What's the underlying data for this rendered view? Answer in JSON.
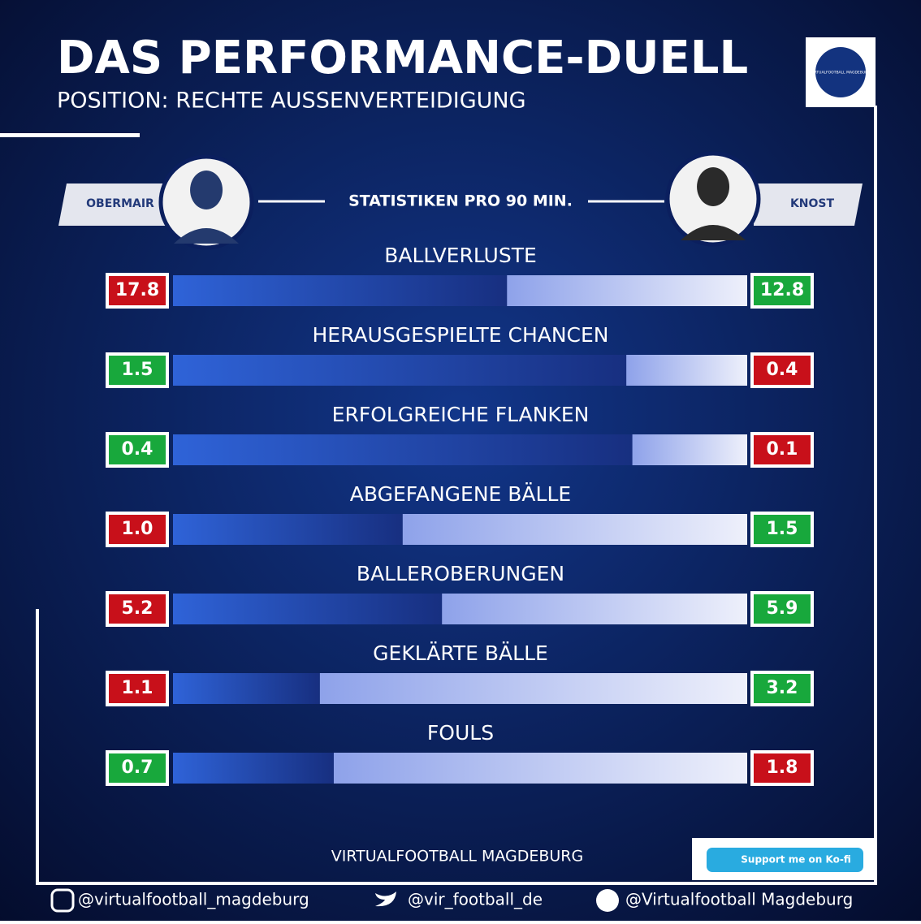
{
  "chart_data": {
    "type": "duel",
    "title": "DAS PERFORMANCE-DUELL",
    "subtitle": "POSITION: RECHTE AUSSENVERTEIDIGUNG",
    "stats_label": "STATISTIKEN PRO 90 MIN.",
    "logo_text": "VIRTUALFOOTBALL MAGDEBURG",
    "categories": [
      "BALLVERLUSTE",
      "HERAUSGESPIELTE CHANCEN",
      "ERFOLGREICHE FLANKEN",
      "ABGEFANGENE BÄLLE",
      "BALLEROBERUNGEN",
      "GEKLÄRTE BÄLLE",
      "FOULS"
    ],
    "series": [
      {
        "name": "OBERMAIR",
        "color": "#1f4fc0",
        "values": [
          17.8,
          1.5,
          0.4,
          1.0,
          5.2,
          1.1,
          0.7
        ],
        "value_labels": [
          "17.8",
          "1.5",
          "0.4",
          "1.0",
          "5.2",
          "1.1",
          "0.7"
        ],
        "box_colors": [
          "#c8101a",
          "#18a83c",
          "#18a83c",
          "#c8101a",
          "#c8101a",
          "#c8101a",
          "#18a83c"
        ]
      },
      {
        "name": "KNOST",
        "color": "#9fb0ec",
        "values": [
          12.8,
          0.4,
          0.1,
          1.5,
          5.9,
          3.2,
          1.8
        ],
        "value_labels": [
          "12.8",
          "0.4",
          "0.1",
          "1.5",
          "5.9",
          "3.2",
          "1.8"
        ],
        "box_colors": [
          "#18a83c",
          "#c8101a",
          "#c8101a",
          "#18a83c",
          "#18a83c",
          "#18a83c",
          "#c8101a"
        ]
      }
    ],
    "footer": "VIRTUALFOOTBALL MAGDEBURG",
    "kofi": "Support me on Ko-fi",
    "socials": [
      "@virtualfootball_magdeburg",
      "@vir_football_de",
      "@Virtualfootball Magdeburg"
    ]
  }
}
